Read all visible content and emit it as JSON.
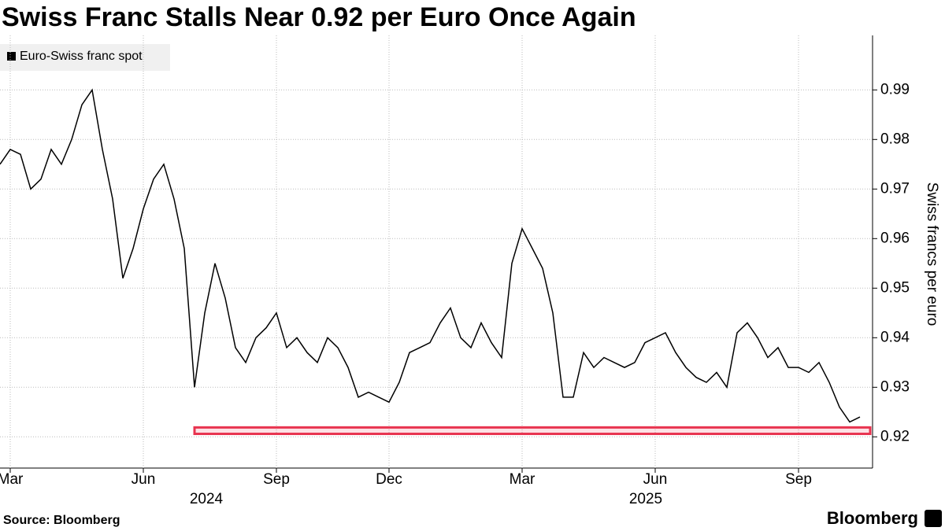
{
  "chart_data": {
    "type": "line",
    "title": "Swiss Franc Stalls Near 0.92 per Euro Once Again",
    "y_axis_label": "Swiss francs per euro",
    "source": "Source: Bloomberg",
    "brand": "Bloomberg",
    "year_labels": [
      "2024",
      "2025"
    ],
    "categories": [
      null,
      "Mar",
      null,
      null,
      null,
      null,
      null,
      null,
      null,
      null,
      null,
      null,
      null,
      null,
      "Jun",
      null,
      null,
      null,
      null,
      null,
      null,
      null,
      null,
      null,
      null,
      null,
      null,
      "Sep",
      null,
      null,
      null,
      null,
      null,
      null,
      null,
      null,
      null,
      null,
      "Dec",
      null,
      null,
      null,
      null,
      null,
      null,
      null,
      null,
      null,
      null,
      null,
      null,
      "Mar",
      null,
      null,
      null,
      null,
      null,
      null,
      null,
      null,
      null,
      null,
      null,
      null,
      "Jun",
      null,
      null,
      null,
      null,
      null,
      null,
      null,
      null,
      null,
      null,
      null,
      null,
      null,
      "Sep",
      null,
      null,
      null,
      null,
      null,
      null
    ],
    "series": [
      {
        "name": "Euro-Swiss franc spot",
        "color": "#000000",
        "values": [
          0.975,
          0.978,
          0.977,
          0.97,
          0.972,
          0.978,
          0.975,
          0.98,
          0.987,
          0.99,
          0.978,
          0.968,
          0.952,
          0.958,
          0.966,
          0.972,
          0.975,
          0.968,
          0.958,
          0.93,
          0.945,
          0.955,
          0.948,
          0.938,
          0.935,
          0.94,
          0.942,
          0.945,
          0.938,
          0.94,
          0.937,
          0.935,
          0.94,
          0.938,
          0.934,
          0.928,
          0.929,
          0.928,
          0.927,
          0.931,
          0.937,
          0.938,
          0.939,
          0.943,
          0.946,
          0.94,
          0.938,
          0.943,
          0.939,
          0.936,
          0.955,
          0.962,
          0.958,
          0.954,
          0.945,
          0.928,
          0.928,
          0.937,
          0.934,
          0.936,
          0.935,
          0.934,
          0.935,
          0.939,
          0.94,
          0.941,
          0.937,
          0.934,
          0.932,
          0.931,
          0.933,
          0.93,
          0.941,
          0.943,
          0.94,
          0.936,
          0.938,
          0.934,
          0.934,
          0.933,
          0.935,
          0.931,
          0.926,
          0.923,
          0.924
        ]
      }
    ],
    "highlight_band": [
      0.9206,
      0.9219
    ],
    "highlight_start": 19,
    "highlight_color": "#e8334f",
    "ylim": [
      0.9137,
      1.001
    ],
    "yticks": [
      0.92,
      0.93,
      0.94,
      0.95,
      0.96,
      0.97,
      0.98,
      0.99
    ],
    "grid": true
  }
}
